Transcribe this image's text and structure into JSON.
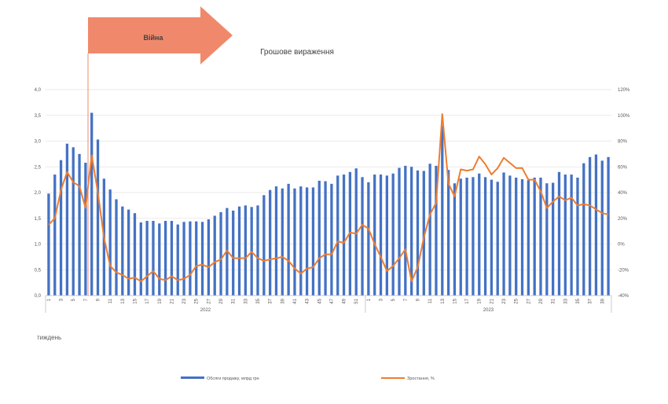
{
  "chart_data": {
    "type": "bar",
    "title": "Грошове вираження",
    "xlabel": "тиждень",
    "annotation": "Війна",
    "colors": {
      "bars": "#4472C4",
      "line": "#ED7D31",
      "arrow": "#F0896B"
    },
    "years": [
      "2022",
      "2023"
    ],
    "x_ticks": [
      "1",
      "3",
      "5",
      "7",
      "9",
      "11",
      "13",
      "15",
      "17",
      "19",
      "21",
      "23",
      "25",
      "27",
      "29",
      "31",
      "33",
      "35",
      "37",
      "39",
      "41",
      "43",
      "45",
      "47",
      "49",
      "51",
      "1",
      "3",
      "5",
      "7",
      "9",
      "11",
      "13",
      "15",
      "17",
      "19",
      "21",
      "23",
      "25",
      "27",
      "29",
      "31",
      "33",
      "35",
      "37",
      "39"
    ],
    "y_left_ticks": [
      "0,0",
      "0,5",
      "1,0",
      "1,5",
      "2,0",
      "2,5",
      "3,0",
      "3,5",
      "4,0"
    ],
    "y_right_ticks": [
      "-40%",
      "-20%",
      "0%",
      "20%",
      "40%",
      "60%",
      "80%",
      "100%",
      "120%"
    ],
    "ylim_left": [
      0,
      4
    ],
    "ylim_right": [
      -40,
      120
    ],
    "grid": true,
    "legend_position": "bottom",
    "series": [
      {
        "name": "Обсяги продажу, млрд грн",
        "type": "bar",
        "axis": "left",
        "values": [
          1.98,
          2.35,
          2.63,
          2.95,
          2.88,
          2.75,
          2.58,
          3.55,
          3.03,
          2.27,
          2.06,
          1.87,
          1.73,
          1.67,
          1.6,
          1.42,
          1.45,
          1.45,
          1.4,
          1.45,
          1.45,
          1.38,
          1.43,
          1.44,
          1.44,
          1.43,
          1.48,
          1.55,
          1.62,
          1.7,
          1.65,
          1.73,
          1.75,
          1.72,
          1.75,
          1.95,
          2.05,
          2.12,
          2.08,
          2.17,
          2.08,
          2.12,
          2.1,
          2.1,
          2.23,
          2.22,
          2.17,
          2.33,
          2.35,
          2.4,
          2.47,
          2.3,
          2.2,
          2.35,
          2.35,
          2.33,
          2.37,
          2.48,
          2.52,
          2.5,
          2.43,
          2.42,
          2.56,
          2.52,
          3.3,
          2.44,
          2.18,
          2.27,
          2.29,
          2.3,
          2.37,
          2.3,
          2.25,
          2.21,
          2.39,
          2.33,
          2.29,
          2.26,
          2.24,
          2.29,
          2.29,
          2.18,
          2.19,
          2.4,
          2.35,
          2.35,
          2.29,
          2.57,
          2.69,
          2.74,
          2.62,
          2.69
        ]
      },
      {
        "name": "Зростання, %",
        "type": "line",
        "axis": "right",
        "values": [
          15,
          20,
          42,
          56,
          48,
          45,
          28,
          69,
          40,
          5,
          -17,
          -22,
          -24,
          -27,
          -26,
          -29,
          -25,
          -21,
          -27,
          -28,
          -25,
          -28,
          -27,
          -24,
          -17,
          -16,
          -18,
          -14,
          -12,
          -5,
          -11,
          -11,
          -11,
          -6,
          -11,
          -13,
          -12,
          -11,
          -10,
          -13,
          -19,
          -23,
          -19,
          -18,
          -11,
          -8,
          -8,
          2,
          1,
          9,
          8,
          15,
          12,
          0,
          -10,
          -21,
          -17,
          -11,
          -4,
          -29,
          -18,
          5,
          23,
          32,
          101,
          47,
          37,
          58,
          57,
          58,
          68,
          62,
          54,
          59,
          67,
          63,
          59,
          59,
          50,
          50,
          41,
          28,
          33,
          37,
          34,
          36,
          30,
          31,
          30,
          27,
          24,
          23
        ]
      }
    ]
  }
}
